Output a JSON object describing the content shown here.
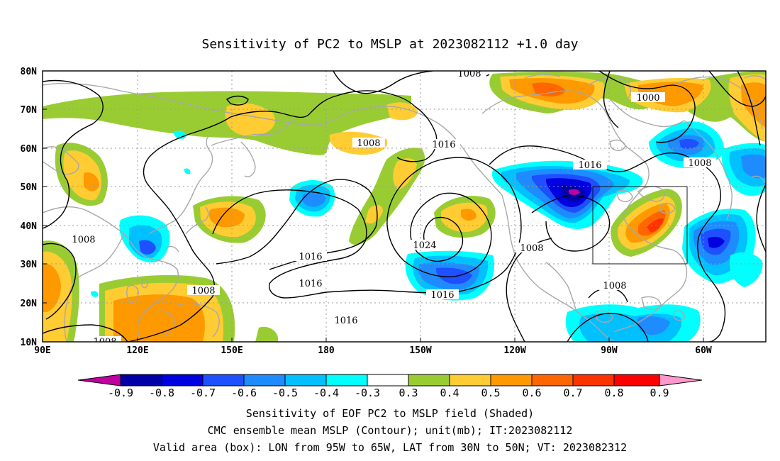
{
  "title": "Sensitivity of PC2 to MSLP at 2023082112 +1.0 day",
  "axes": {
    "lat_labels": [
      "80N",
      "70N",
      "60N",
      "50N",
      "40N",
      "30N",
      "20N",
      "10N"
    ],
    "lon_labels": [
      "90E",
      "120E",
      "150E",
      "180",
      "150W",
      "120W",
      "90W",
      "60W"
    ]
  },
  "contour_labels": [
    "1008",
    "1000",
    "1008",
    "1008",
    "1016",
    "1016",
    "1016",
    "1008",
    "1016",
    "1024",
    "1016",
    "1016",
    "1008",
    "1008",
    "1008",
    "1008"
  ],
  "colorbar": {
    "labels": [
      "-0.9",
      "-0.8",
      "-0.7",
      "-0.6",
      "-0.5",
      "-0.4",
      "-0.3",
      "0.3",
      "0.4",
      "0.5",
      "0.6",
      "0.7",
      "0.8",
      "0.9"
    ],
    "colors": [
      "#c000a0",
      "#0000a8",
      "#0000e0",
      "#1e50ff",
      "#1e8cff",
      "#00c0ff",
      "#00ffff",
      "#ffffff",
      "#99cc33",
      "#ffcc33",
      "#ff9900",
      "#ff6600",
      "#ff3300",
      "#ff0000",
      "#ff99cc"
    ]
  },
  "footer": [
    "Sensitivity of EOF PC2 to MSLP field (Shaded)",
    "CMC ensemble mean MSLP (Contour); unit(mb); IT:2023082112",
    "Valid area (box): LON from 95W to 65W, LAT from 30N to 50N; VT: 2023082312"
  ]
}
